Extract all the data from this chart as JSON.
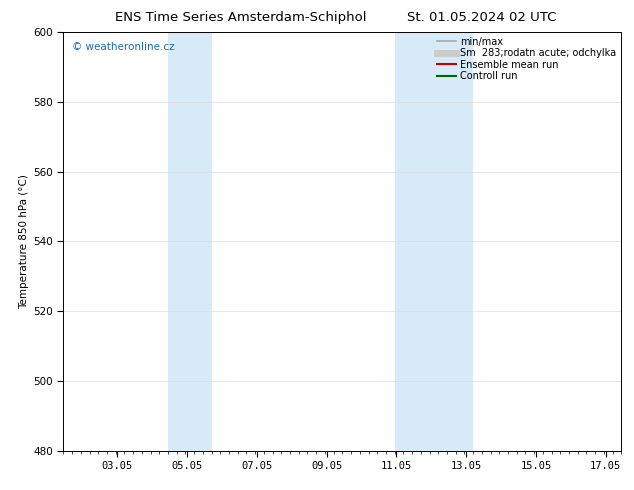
{
  "title_left": "ENS Time Series Amsterdam-Schiphol",
  "title_right": "St. 01.05.2024 02 UTC",
  "ylabel": "Temperature 850 hPa (°C)",
  "xlim_min": 1.5,
  "xlim_max": 17.5,
  "ylim_min": 480,
  "ylim_max": 600,
  "xticks": [
    3.05,
    5.05,
    7.05,
    9.05,
    11.05,
    13.05,
    15.05,
    17.05
  ],
  "xtick_labels": [
    "03.05",
    "05.05",
    "07.05",
    "09.05",
    "11.05",
    "13.05",
    "15.05",
    "17.05"
  ],
  "yticks": [
    480,
    500,
    520,
    540,
    560,
    580,
    600
  ],
  "shaded_regions": [
    {
      "xmin": 4.5,
      "xmax": 5.75,
      "color": "#d6eaf8"
    },
    {
      "xmin": 11.0,
      "xmax": 13.25,
      "color": "#d6eaf8"
    }
  ],
  "watermark_text": "© weatheronline.cz",
  "watermark_color": "#1a6bb5",
  "legend_items": [
    {
      "label": "min/max",
      "color": "#aaaaaa",
      "lw": 1.2,
      "ls": "-"
    },
    {
      "label": "Sm  283;rodatn acute; odchylka",
      "color": "#cccccc",
      "lw": 5,
      "ls": "-"
    },
    {
      "label": "Ensemble mean run",
      "color": "#cc0000",
      "lw": 1.5,
      "ls": "-"
    },
    {
      "label": "Controll run",
      "color": "#006600",
      "lw": 1.5,
      "ls": "-"
    }
  ],
  "bg_color": "#ffffff",
  "grid_color": "#dddddd",
  "title_fontsize": 9.5,
  "tick_fontsize": 7.5,
  "ylabel_fontsize": 7.5,
  "watermark_fontsize": 7.5,
  "legend_fontsize": 7.0
}
